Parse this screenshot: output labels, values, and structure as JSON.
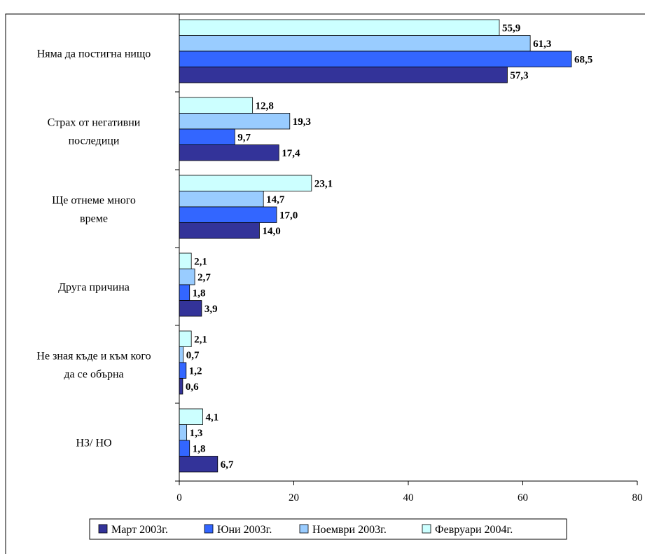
{
  "chart_data": {
    "type": "bar",
    "orientation": "horizontal",
    "categories": [
      [
        "Няма да постигна нищо"
      ],
      [
        "Страх от негативни",
        "последици"
      ],
      [
        "Ще отнеме много",
        "време"
      ],
      [
        "Друга причина"
      ],
      [
        "Не зная къде и към кого",
        "да се обърна"
      ],
      [
        "НЗ/ НО"
      ]
    ],
    "series": [
      {
        "name": "Февруари 2004г.",
        "color": "#ccffff",
        "values": [
          55.9,
          12.8,
          23.1,
          2.1,
          2.1,
          4.1
        ],
        "labels": [
          "55,9",
          "12,8",
          "23,1",
          "2,1",
          "2,1",
          "4,1"
        ]
      },
      {
        "name": "Ноември 2003г.",
        "color": "#99ccff",
        "values": [
          61.3,
          19.3,
          14.7,
          2.7,
          0.7,
          1.3
        ],
        "labels": [
          "61,3",
          "19,3",
          "14,7",
          "2,7",
          "0,7",
          "1,3"
        ]
      },
      {
        "name": "Юни 2003г.",
        "color": "#3366ff",
        "values": [
          68.5,
          9.7,
          17.0,
          1.8,
          1.2,
          1.8
        ],
        "labels": [
          "68,5",
          "9,7",
          "17,0",
          "1,8",
          "1,2",
          "1,8"
        ]
      },
      {
        "name": "Март 2003г.",
        "color": "#333399",
        "values": [
          57.3,
          17.4,
          14.0,
          3.9,
          0.6,
          6.7
        ],
        "labels": [
          "57,3",
          "17,4",
          "14,0",
          "3,9",
          "0,6",
          "6,7"
        ]
      }
    ],
    "xlim": [
      0,
      80
    ],
    "xticks": [
      0,
      20,
      40,
      60,
      80
    ],
    "xtick_labels": [
      "0",
      "20",
      "40",
      "60",
      "80"
    ],
    "grid": false,
    "legend": {
      "position": "bottom",
      "entries": [
        {
          "name": "Март 2003г.",
          "color": "#333399"
        },
        {
          "name": "Юни 2003г.",
          "color": "#3366ff"
        },
        {
          "name": "Ноември 2003г.",
          "color": "#99ccff"
        },
        {
          "name": "Февруари 2004г.",
          "color": "#ccffff"
        }
      ]
    }
  }
}
